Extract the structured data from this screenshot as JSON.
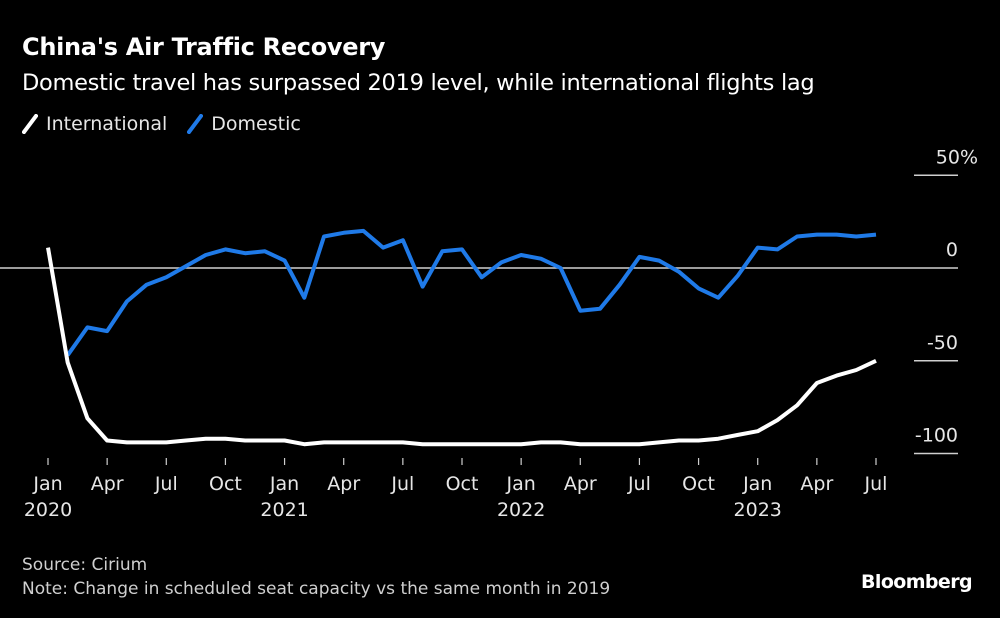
{
  "header": {
    "title": "China's Air Traffic Recovery",
    "subtitle": "Domestic travel has surpassed 2019 level, while international flights lag"
  },
  "footer": {
    "source": "Source: Cirium",
    "note": "Note: Change in scheduled seat capacity vs the same month in 2019",
    "brand": "Bloomberg"
  },
  "chart_data": {
    "type": "line",
    "title": "China's Air Traffic Recovery",
    "subtitle": "Domestic travel has surpassed 2019 level, while international flights lag",
    "xlabel": "",
    "ylabel": "",
    "ylim": [
      -100,
      50
    ],
    "y_ticks": [
      {
        "value": 50,
        "label": "50%"
      },
      {
        "value": 0,
        "label": "0"
      },
      {
        "value": -50,
        "label": "-50"
      },
      {
        "value": -100,
        "label": "-100"
      }
    ],
    "y_axis_position": "right",
    "zero_line": true,
    "grid": false,
    "legend": "top-left",
    "x": [
      "2020-01",
      "2020-02",
      "2020-03",
      "2020-04",
      "2020-05",
      "2020-06",
      "2020-07",
      "2020-08",
      "2020-09",
      "2020-10",
      "2020-11",
      "2020-12",
      "2021-01",
      "2021-02",
      "2021-03",
      "2021-04",
      "2021-05",
      "2021-06",
      "2021-07",
      "2021-08",
      "2021-09",
      "2021-10",
      "2021-11",
      "2021-12",
      "2022-01",
      "2022-02",
      "2022-03",
      "2022-04",
      "2022-05",
      "2022-06",
      "2022-07",
      "2022-08",
      "2022-09",
      "2022-10",
      "2022-11",
      "2022-12",
      "2023-01",
      "2023-02",
      "2023-03",
      "2023-04",
      "2023-05",
      "2023-06",
      "2023-07"
    ],
    "x_ticks": [
      {
        "index": 0,
        "label": "Jan",
        "year": "2020"
      },
      {
        "index": 3,
        "label": "Apr",
        "year": ""
      },
      {
        "index": 6,
        "label": "Jul",
        "year": ""
      },
      {
        "index": 9,
        "label": "Oct",
        "year": ""
      },
      {
        "index": 12,
        "label": "Jan",
        "year": "2021"
      },
      {
        "index": 15,
        "label": "Apr",
        "year": ""
      },
      {
        "index": 18,
        "label": "Jul",
        "year": ""
      },
      {
        "index": 21,
        "label": "Oct",
        "year": ""
      },
      {
        "index": 24,
        "label": "Jan",
        "year": "2022"
      },
      {
        "index": 27,
        "label": "Apr",
        "year": ""
      },
      {
        "index": 30,
        "label": "Jul",
        "year": ""
      },
      {
        "index": 33,
        "label": "Oct",
        "year": ""
      },
      {
        "index": 36,
        "label": "Jan",
        "year": "2023"
      },
      {
        "index": 39,
        "label": "Apr",
        "year": ""
      },
      {
        "index": 42,
        "label": "Jul",
        "year": ""
      }
    ],
    "series": [
      {
        "name": "International",
        "color": "#ffffff",
        "values": [
          11,
          -51,
          -81,
          -93,
          -94,
          -94,
          -94,
          -93,
          -92,
          -92,
          -93,
          -93,
          -93,
          -95,
          -94,
          -94,
          -94,
          -94,
          -94,
          -95,
          -95,
          -95,
          -95,
          -95,
          -95,
          -94,
          -94,
          -95,
          -95,
          -95,
          -95,
          -94,
          -93,
          -93,
          -92,
          -90,
          -88,
          -82,
          -74,
          -62,
          -58,
          -55,
          -50
        ]
      },
      {
        "name": "Domestic",
        "color": "#1f7ae8",
        "values": [
          null,
          -47,
          -32,
          -34,
          -18,
          -9,
          -5,
          1,
          7,
          10,
          8,
          9,
          4,
          -16,
          17,
          19,
          20,
          11,
          15,
          -10,
          9,
          10,
          -5,
          3,
          7,
          5,
          0,
          -23,
          -22,
          -9,
          6,
          4,
          -2,
          -11,
          -16,
          -4,
          11,
          10,
          17,
          18,
          18,
          17,
          18
        ]
      }
    ]
  }
}
